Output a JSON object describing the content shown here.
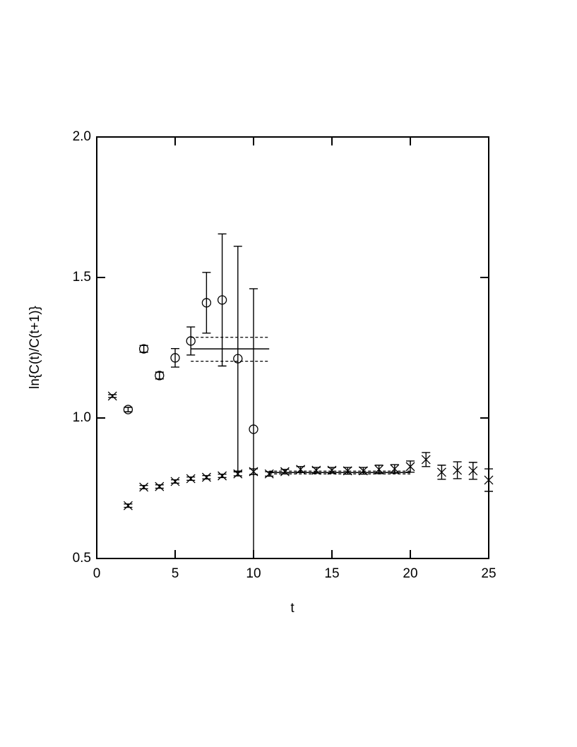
{
  "chart_data": {
    "type": "scatter",
    "xlabel": "t",
    "ylabel": "ln{C(t)/C(t+1)}",
    "xlim": [
      0,
      25
    ],
    "ylim": [
      0.5,
      2
    ],
    "xticks": [
      0,
      5,
      10,
      15,
      20,
      25
    ],
    "yticks": [
      0.5,
      {
        "value": 1,
        "label": "1.0"
      },
      1.5,
      {
        "value": 2,
        "label": "2.0"
      }
    ],
    "color": "#000000",
    "series": [
      {
        "marker": "circle",
        "x": [
          2,
          3,
          4,
          5,
          6,
          7,
          8,
          9,
          10
        ],
        "values": [
          1.03,
          1.246,
          1.151,
          1.214,
          1.274,
          1.41,
          1.42,
          1.211,
          0.96
        ],
        "errors": [
          0.008,
          0.012,
          0.012,
          0.033,
          0.05,
          0.108,
          0.235,
          0.4,
          0.5
        ]
      },
      {
        "marker": "cross",
        "x": [
          1,
          2,
          3,
          4,
          5,
          6,
          7,
          8,
          9,
          10,
          11,
          12,
          13,
          14,
          15,
          16,
          17,
          18,
          19,
          20,
          21,
          22,
          23,
          24,
          25
        ],
        "values": [
          1.078,
          0.688,
          0.754,
          0.756,
          0.774,
          0.784,
          0.789,
          0.794,
          0.801,
          0.809,
          0.801,
          0.809,
          0.817,
          0.814,
          0.814,
          0.812,
          0.812,
          0.817,
          0.819,
          0.827,
          0.852,
          0.807,
          0.814,
          0.812,
          0.779
        ],
        "errors": [
          0.005,
          0.006,
          0.006,
          0.006,
          0.006,
          0.006,
          0.006,
          0.006,
          0.007,
          0.01,
          0.008,
          0.008,
          0.01,
          0.01,
          0.01,
          0.012,
          0.012,
          0.015,
          0.015,
          0.02,
          0.025,
          0.025,
          0.03,
          0.03,
          0.04
        ]
      }
    ],
    "fits": [
      {
        "x": [
          6,
          11
        ],
        "value": 1.246,
        "upper": 1.287,
        "lower": 1.202
      },
      {
        "x": [
          11,
          20
        ],
        "value": 0.806,
        "upper": 0.811,
        "lower": 0.801
      }
    ]
  }
}
